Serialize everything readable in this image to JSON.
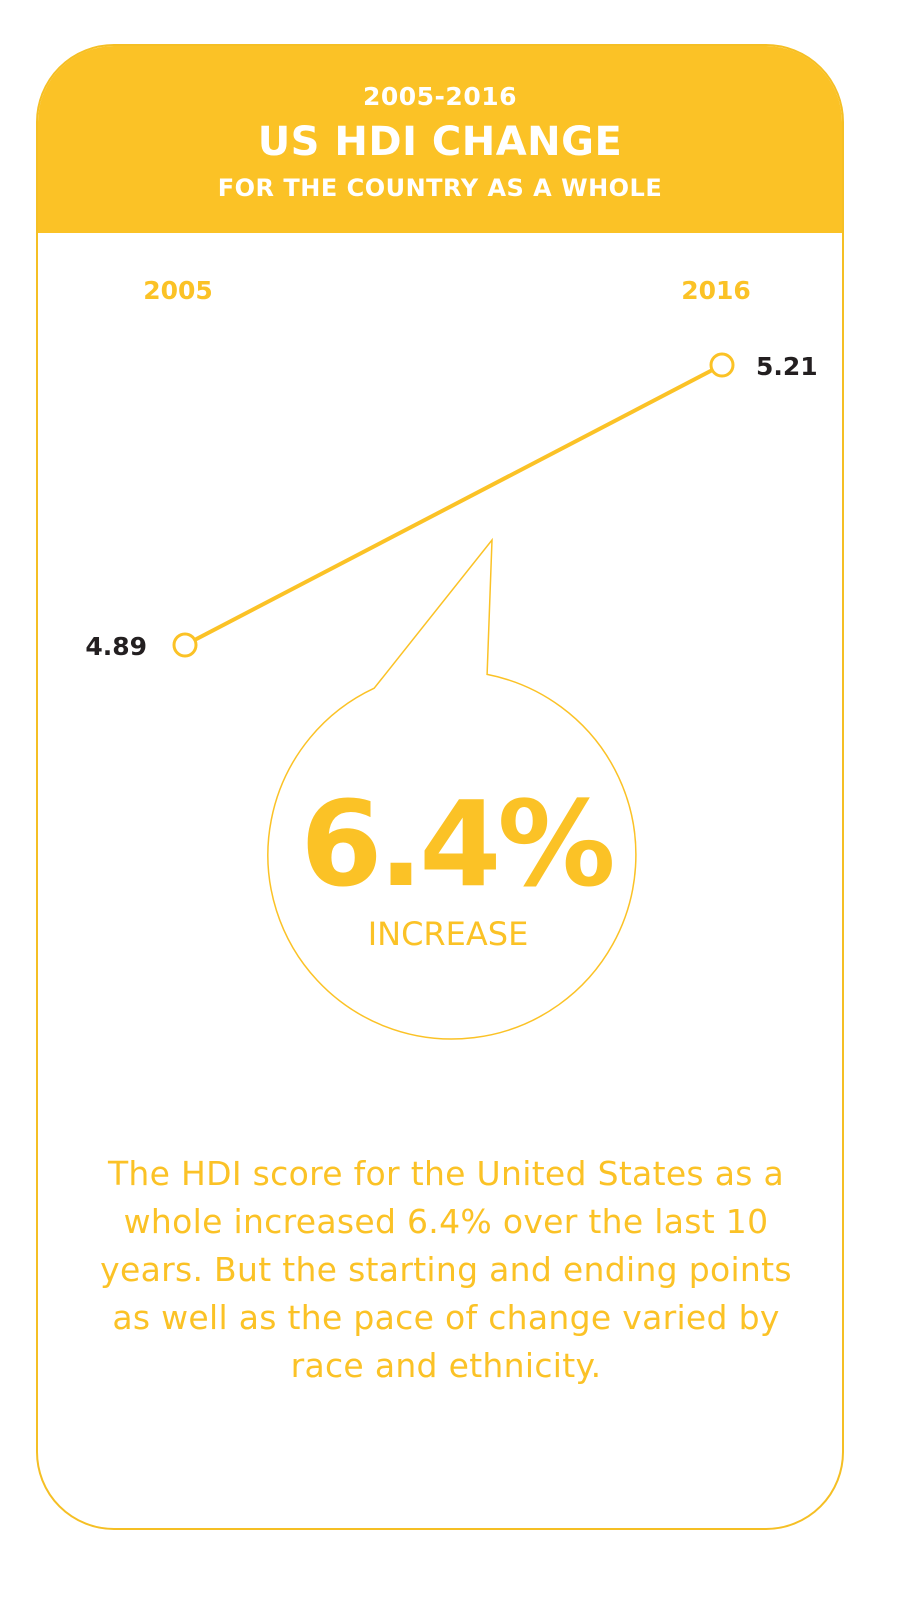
{
  "header": {
    "period": "2005-2016",
    "title": "US HDI CHANGE",
    "subtitle": "FOR THE COUNTRY AS A WHOLE"
  },
  "chart_data": {
    "type": "line",
    "x": [
      "2005",
      "2016"
    ],
    "series": [
      {
        "values": [
          4.89,
          5.21
        ],
        "labels": [
          "4.89",
          "5.21"
        ]
      }
    ],
    "title": "US HDI CHANGE",
    "subtitle": "FOR THE COUNTRY AS A WHOLE",
    "grid": false,
    "annotation": {
      "value": "6.4%",
      "label": "INCREASE"
    }
  },
  "body_text": "The HDI score for the United States as a whole increased 6.4% over the last 10 years. But the starting and ending points as well as the pace of change varied by race and ethnicity.",
  "colors": {
    "accent": "#fbc226",
    "text_dark": "#231f20",
    "background": "#ffffff"
  }
}
